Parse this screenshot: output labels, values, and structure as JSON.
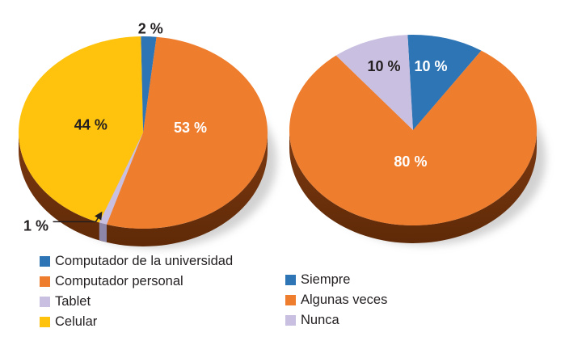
{
  "palette": {
    "blue": "#2E75B6",
    "orange": "#EE7D2E",
    "lavender": "#C9BFE0",
    "yellow": "#FFC30D",
    "label_dark": "#231F20",
    "label_light": "#FFFFFF",
    "rim_top": "#7D3910",
    "rim_bottom": "#5F2A08",
    "lavender_side": "#8E86A8",
    "shadow": "#ADADAD"
  },
  "chart_data": [
    {
      "type": "pie",
      "name": "device-usage",
      "style": "3d-pie",
      "unit": "%",
      "legend_position": "bottom-left",
      "slices": [
        {
          "label": "Computador de la universidad",
          "value": 2,
          "value_label": "2 %",
          "color": "blue",
          "label_color": "dark",
          "label_at": [
            0.06,
            -1.08
          ]
        },
        {
          "label": "Computador personal",
          "value": 53,
          "value_label": "53 %",
          "color": "orange",
          "label_color": "light",
          "label_at": [
            0.38,
            -0.05
          ]
        },
        {
          "label": "Tablet",
          "value": 1,
          "value_label": "1 %",
          "color": "lavender",
          "label_color": "dark",
          "label_at": [
            -0.86,
            0.97
          ],
          "leader": true,
          "side_color": "lavender_side"
        },
        {
          "label": "Celular",
          "value": 44,
          "value_label": "44 %",
          "color": "yellow",
          "label_color": "dark",
          "label_at": [
            -0.42,
            -0.08
          ]
        }
      ]
    },
    {
      "type": "pie",
      "name": "frequency",
      "style": "3d-pie",
      "unit": "%",
      "legend_position": "bottom-right",
      "slices": [
        {
          "label": "Siempre",
          "value": 10,
          "value_label": "10 %",
          "color": "blue",
          "label_color": "light",
          "label_at": [
            0.144,
            -0.67
          ]
        },
        {
          "label": "Algunas veces",
          "value": 80,
          "value_label": "80 %",
          "color": "orange",
          "label_color": "light",
          "label_at": [
            -0.02,
            0.33
          ]
        },
        {
          "label": "Nunca",
          "value": 10,
          "value_label": "10 %",
          "color": "lavender",
          "label_color": "dark",
          "label_at": [
            -0.235,
            -0.67
          ]
        }
      ]
    }
  ]
}
